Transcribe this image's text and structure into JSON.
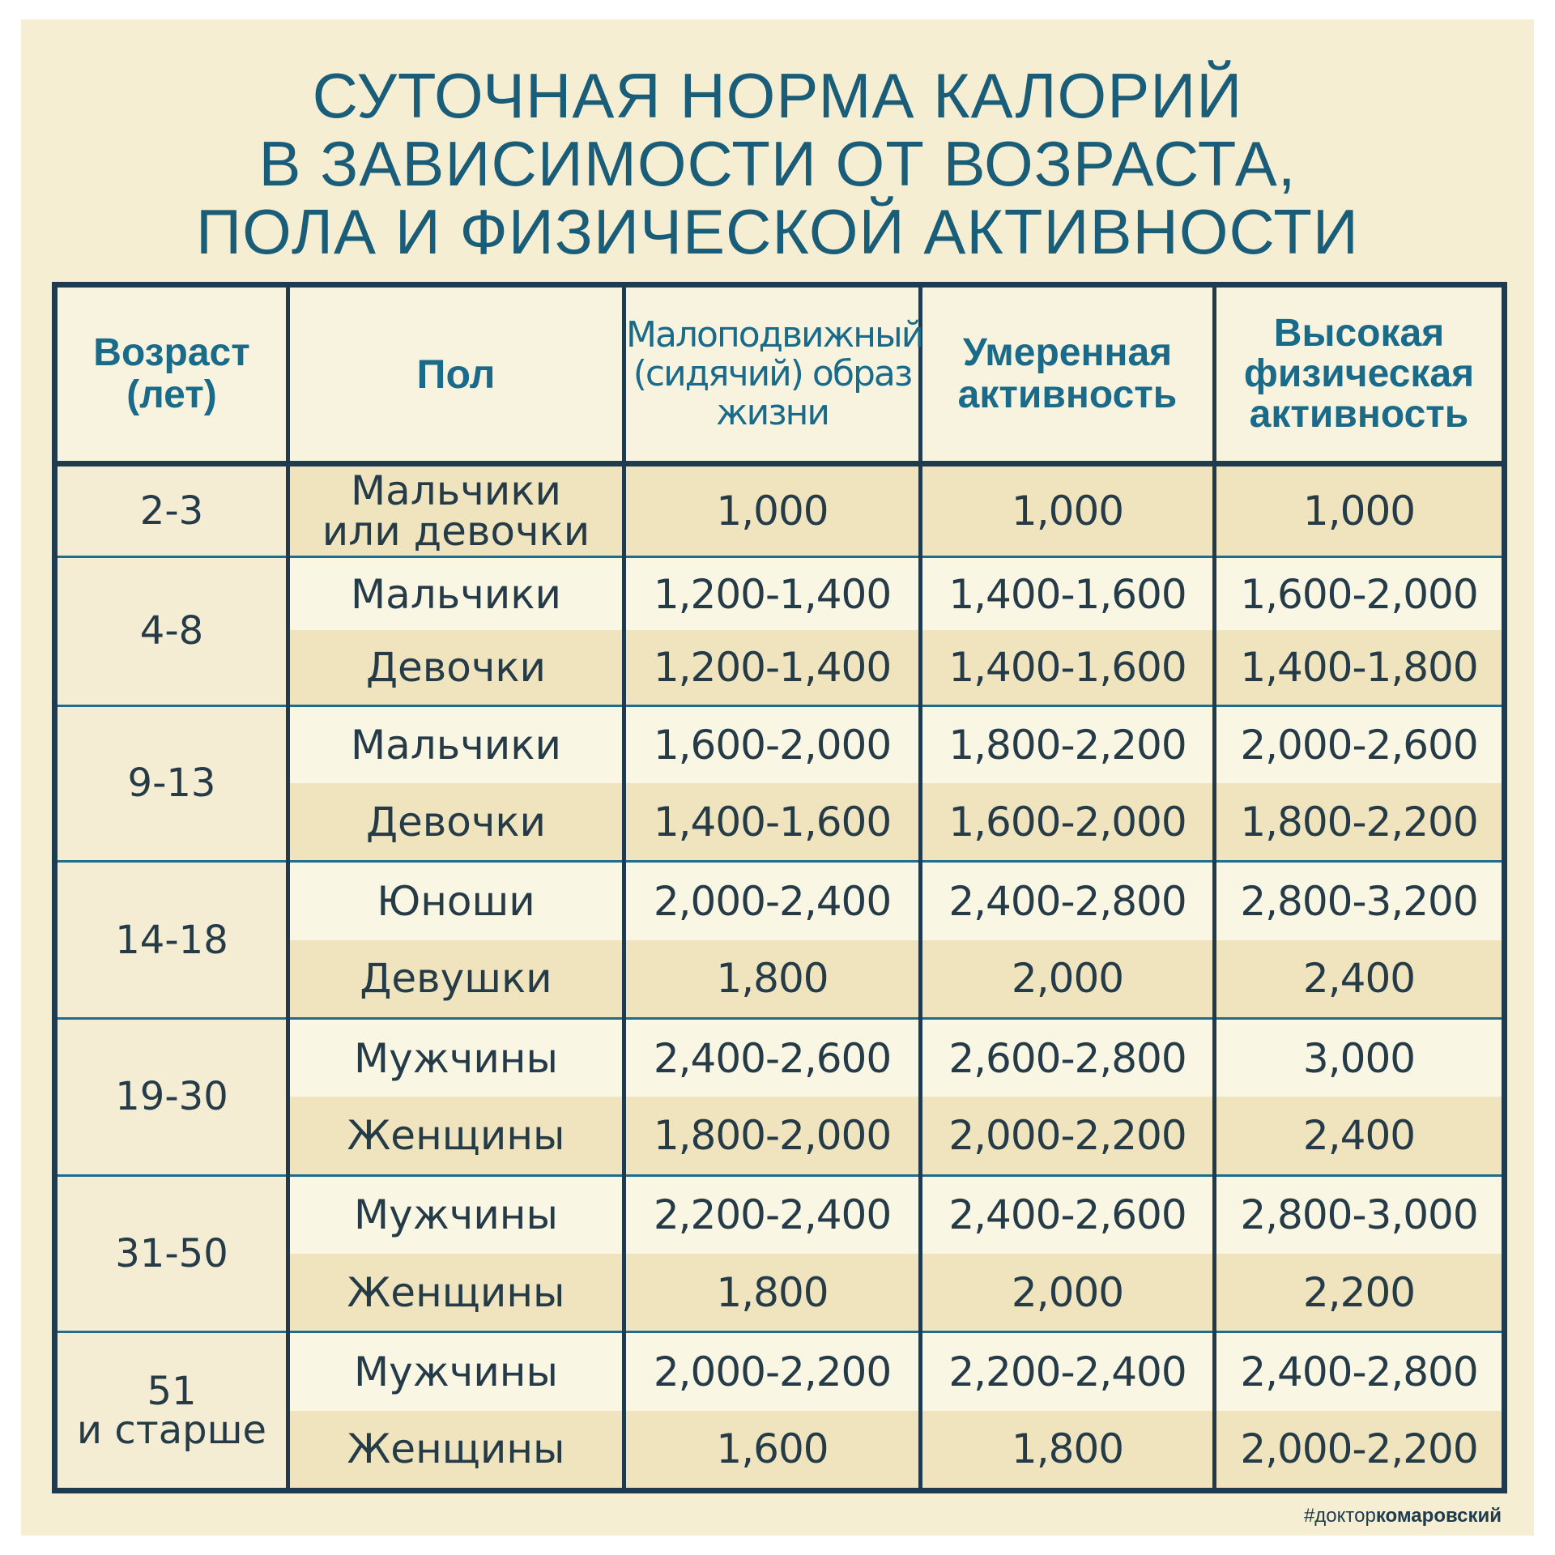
{
  "title": {
    "line1": "СУТОЧНАЯ НОРМА КАЛОРИЙ",
    "line2": "В ЗАВИСИМОСТИ ОТ ВОЗРАСТА,",
    "line3": "ПОЛА И ФИЗИЧЕСКОЙ АКТИВНОСТИ"
  },
  "headers": {
    "age_line1": "Возраст",
    "age_line2": "(лет)",
    "sex": "Пол",
    "sedentary_line1": "Малоподвижный",
    "sedentary_line2": "(сидячий) образ",
    "sedentary_line3": "жизни",
    "moderate_line1": "Умеренная",
    "moderate_line2": "активность",
    "high_line1": "Высокая",
    "high_line2": "физическая",
    "high_line3": "активность"
  },
  "groups": [
    {
      "age": "2-3",
      "rows": [
        {
          "sex_line1": "Мальчики",
          "sex_line2": "или девочки",
          "sedentary": "1,000",
          "moderate": "1,000",
          "high": "1,000"
        }
      ]
    },
    {
      "age": "4-8",
      "rows": [
        {
          "sex": "Мальчики",
          "sedentary": "1,200-1,400",
          "moderate": "1,400-1,600",
          "high": "1,600-2,000"
        },
        {
          "sex": "Девочки",
          "sedentary": "1,200-1,400",
          "moderate": "1,400-1,600",
          "high": "1,400-1,800"
        }
      ]
    },
    {
      "age": "9-13",
      "rows": [
        {
          "sex": "Мальчики",
          "sedentary": "1,600-2,000",
          "moderate": "1,800-2,200",
          "high": "2,000-2,600"
        },
        {
          "sex": "Девочки",
          "sedentary": "1,400-1,600",
          "moderate": "1,600-2,000",
          "high": "1,800-2,200"
        }
      ]
    },
    {
      "age": "14-18",
      "rows": [
        {
          "sex": "Юноши",
          "sedentary": "2,000-2,400",
          "moderate": "2,400-2,800",
          "high": "2,800-3,200"
        },
        {
          "sex": "Девушки",
          "sedentary": "1,800",
          "moderate": "2,000",
          "high": "2,400"
        }
      ]
    },
    {
      "age": "19-30",
      "rows": [
        {
          "sex": "Мужчины",
          "sedentary": "2,400-2,600",
          "moderate": "2,600-2,800",
          "high": "3,000"
        },
        {
          "sex": "Женщины",
          "sedentary": "1,800-2,000",
          "moderate": "2,000-2,200",
          "high": "2,400"
        }
      ]
    },
    {
      "age": "31-50",
      "rows": [
        {
          "sex": "Мужчины",
          "sedentary": "2,200-2,400",
          "moderate": "2,400-2,600",
          "high": "2,800-3,000"
        },
        {
          "sex": "Женщины",
          "sedentary": "1,800",
          "moderate": "2,000",
          "high": "2,200"
        }
      ]
    },
    {
      "age_line1": "51",
      "age_line2": "и старше",
      "rows": [
        {
          "sex": "Мужчины",
          "sedentary": "2,000-2,200",
          "moderate": "2,200-2,400",
          "high": "2,400-2,800"
        },
        {
          "sex": "Женщины",
          "sedentary": "1,600",
          "moderate": "1,800",
          "high": "2,000-2,200"
        }
      ]
    }
  ],
  "brand": {
    "prefix": "#доктор",
    "name": "комаровский"
  },
  "colors": {
    "background": "#f5eed2",
    "title": "#1a5d78",
    "header_text": "#1a6a8a",
    "border": "#1f3b4d",
    "row_dark": "#efe4bd",
    "row_light": "#faf6e4"
  }
}
